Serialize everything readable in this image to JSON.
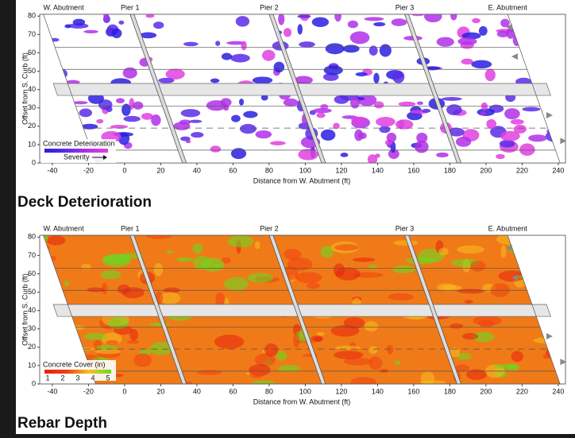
{
  "chart_data": [
    {
      "type": "map",
      "title": "Deck Deterioration",
      "x_label": "Distance from W. Abutment (ft)",
      "y_label": "Offset from S. Curb (ft)",
      "xlim": [
        -47,
        244
      ],
      "ylim": [
        0,
        81
      ],
      "xticks": [
        -40,
        -20,
        0,
        20,
        40,
        60,
        80,
        100,
        120,
        140,
        160,
        180,
        200,
        220,
        240
      ],
      "yticks": [
        0,
        10,
        20,
        30,
        40,
        50,
        60,
        70,
        80
      ],
      "supports": [
        {
          "label": "W. Abutment",
          "x": -45
        },
        {
          "label": "Pier 1",
          "x": 3
        },
        {
          "label": "Pier 2",
          "x": 80
        },
        {
          "label": "Pier 3",
          "x": 155
        },
        {
          "label": "E. Abutment",
          "x": 212
        }
      ],
      "legend": {
        "title": "Concrete Deterioration",
        "label": "Severity"
      },
      "colors": [
        "#2a1fe0",
        "#5a2ce8",
        "#b030e8",
        "#e040e0"
      ],
      "background": "#ffffff"
    },
    {
      "type": "map",
      "title": "Rebar Depth",
      "x_label": "Distance from W. Abutment (ft)",
      "y_label": "Offset from S. Curb (ft)",
      "xlim": [
        -47,
        244
      ],
      "ylim": [
        0,
        81
      ],
      "xticks": [
        -40,
        -20,
        0,
        20,
        40,
        60,
        80,
        100,
        120,
        140,
        160,
        180,
        200,
        220,
        240
      ],
      "yticks": [
        0,
        10,
        20,
        30,
        40,
        50,
        60,
        70,
        80
      ],
      "supports": [
        {
          "label": "W. Abutment",
          "x": -45
        },
        {
          "label": "Pier 1",
          "x": 3
        },
        {
          "label": "Pier 2",
          "x": 80
        },
        {
          "label": "Pier 3",
          "x": 155
        },
        {
          "label": "E. Abutment",
          "x": 212
        }
      ],
      "legend": {
        "title": "Concrete Cover (in)",
        "ticks": [
          1,
          2,
          3,
          4,
          5
        ]
      },
      "colors": [
        "#e8200c",
        "#f04010",
        "#f8c020",
        "#60e020"
      ],
      "background": "#f07a18"
    }
  ]
}
